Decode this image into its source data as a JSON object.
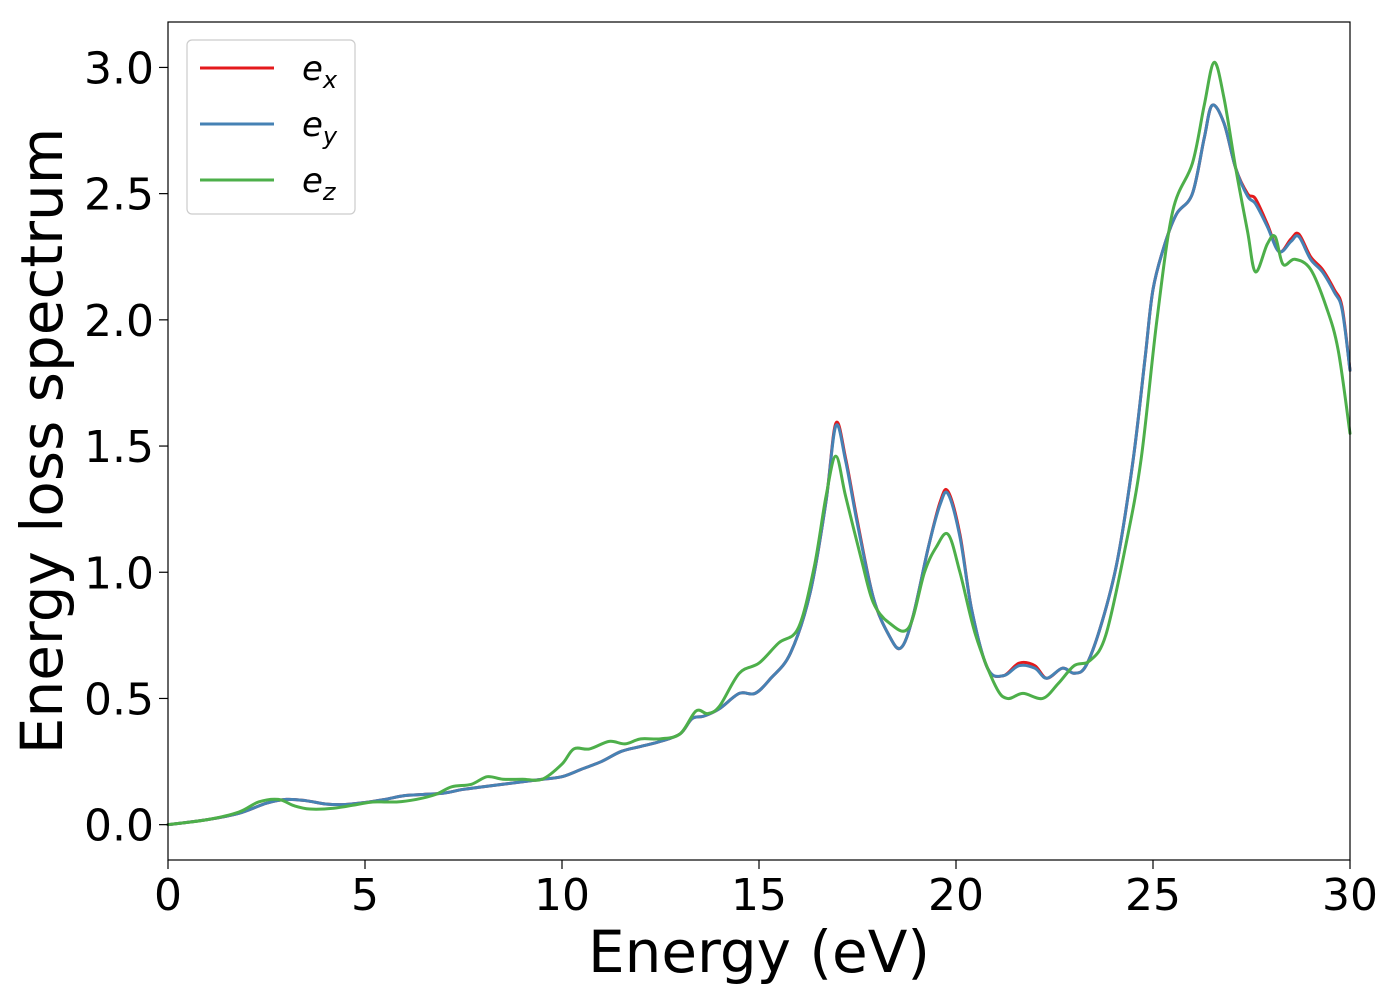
{
  "chart_data": {
    "type": "line",
    "title": "",
    "xlabel": "Energy (eV)",
    "ylabel": "Energy loss spectrum",
    "xlim": [
      0,
      30
    ],
    "ylim": [
      -0.14,
      3.18
    ],
    "xticks": [
      "0",
      "5",
      "10",
      "15",
      "20",
      "25",
      "30"
    ],
    "yticks": [
      "0.0",
      "0.5",
      "1.0",
      "1.5",
      "2.0",
      "2.5",
      "3.0"
    ],
    "grid": false,
    "legend_position": "top-left",
    "series": [
      {
        "name": "e_x",
        "legend_main": "e",
        "legend_sub": "x",
        "color": "#e41a1c",
        "x": [
          0,
          1,
          1.8,
          2.5,
          3,
          3.5,
          4,
          4.5,
          5,
          5.5,
          6,
          6.5,
          7,
          7.5,
          8,
          8.5,
          9,
          9.5,
          10,
          10.5,
          11,
          11.5,
          12,
          12.5,
          13,
          13.3,
          13.6,
          14,
          14.5,
          14.9,
          15.3,
          15.8,
          16.3,
          16.7,
          16.95,
          17.2,
          17.5,
          17.9,
          18.3,
          18.6,
          18.9,
          19.3,
          19.6,
          19.8,
          20.1,
          20.4,
          20.8,
          21.2,
          21.6,
          22,
          22.3,
          22.7,
          23,
          23.3,
          23.7,
          24.1,
          24.5,
          24.8,
          25,
          25.3,
          25.6,
          26,
          26.3,
          26.5,
          26.8,
          27.1,
          27.4,
          27.6,
          27.9,
          28.2,
          28.5,
          28.7,
          29,
          29.3,
          29.6,
          29.8,
          30
        ],
        "values": [
          0,
          0.02,
          0.045,
          0.085,
          0.1,
          0.095,
          0.082,
          0.08,
          0.088,
          0.1,
          0.115,
          0.12,
          0.125,
          0.14,
          0.15,
          0.16,
          0.17,
          0.18,
          0.19,
          0.22,
          0.25,
          0.29,
          0.31,
          0.33,
          0.36,
          0.42,
          0.43,
          0.46,
          0.52,
          0.52,
          0.58,
          0.68,
          0.92,
          1.28,
          1.59,
          1.45,
          1.2,
          0.9,
          0.75,
          0.7,
          0.82,
          1.1,
          1.28,
          1.32,
          1.15,
          0.85,
          0.62,
          0.59,
          0.64,
          0.63,
          0.58,
          0.62,
          0.6,
          0.63,
          0.8,
          1.05,
          1.45,
          1.85,
          2.12,
          2.3,
          2.42,
          2.5,
          2.72,
          2.85,
          2.78,
          2.6,
          2.5,
          2.48,
          2.38,
          2.27,
          2.32,
          2.34,
          2.25,
          2.2,
          2.12,
          2.05,
          1.8
        ]
      },
      {
        "name": "e_y",
        "legend_main": "e",
        "legend_sub": "y",
        "color": "#4682b4",
        "x": [
          0,
          1,
          1.8,
          2.5,
          3,
          3.5,
          4,
          4.5,
          5,
          5.5,
          6,
          6.5,
          7,
          7.5,
          8,
          8.5,
          9,
          9.5,
          10,
          10.5,
          11,
          11.5,
          12,
          12.5,
          13,
          13.3,
          13.6,
          14,
          14.5,
          14.9,
          15.3,
          15.8,
          16.3,
          16.7,
          16.95,
          17.2,
          17.5,
          17.9,
          18.3,
          18.6,
          18.9,
          19.3,
          19.6,
          19.8,
          20.1,
          20.4,
          20.8,
          21.2,
          21.6,
          22,
          22.3,
          22.7,
          23,
          23.3,
          23.7,
          24.1,
          24.5,
          24.8,
          25,
          25.3,
          25.6,
          26,
          26.3,
          26.5,
          26.8,
          27.1,
          27.4,
          27.6,
          27.9,
          28.2,
          28.5,
          28.7,
          29,
          29.3,
          29.6,
          29.8,
          30
        ],
        "values": [
          0,
          0.02,
          0.045,
          0.085,
          0.1,
          0.095,
          0.082,
          0.08,
          0.088,
          0.1,
          0.115,
          0.12,
          0.125,
          0.14,
          0.15,
          0.16,
          0.17,
          0.18,
          0.19,
          0.22,
          0.25,
          0.29,
          0.31,
          0.33,
          0.36,
          0.42,
          0.43,
          0.46,
          0.52,
          0.52,
          0.58,
          0.68,
          0.92,
          1.28,
          1.58,
          1.44,
          1.19,
          0.9,
          0.75,
          0.7,
          0.82,
          1.1,
          1.27,
          1.31,
          1.14,
          0.85,
          0.62,
          0.59,
          0.63,
          0.62,
          0.58,
          0.62,
          0.6,
          0.63,
          0.8,
          1.05,
          1.45,
          1.85,
          2.12,
          2.3,
          2.42,
          2.5,
          2.72,
          2.85,
          2.78,
          2.6,
          2.49,
          2.46,
          2.37,
          2.27,
          2.31,
          2.33,
          2.24,
          2.19,
          2.11,
          2.04,
          1.8
        ]
      },
      {
        "name": "e_z",
        "legend_main": "e",
        "legend_sub": "z",
        "color": "#4daf4a",
        "x": [
          0,
          1,
          1.8,
          2.3,
          2.8,
          3.2,
          3.6,
          4.2,
          4.8,
          5.2,
          5.8,
          6.3,
          6.8,
          7.2,
          7.7,
          8.1,
          8.5,
          9,
          9.5,
          10,
          10.3,
          10.7,
          11.2,
          11.6,
          12,
          12.5,
          13,
          13.4,
          13.7,
          14,
          14.5,
          15,
          15.5,
          16,
          16.4,
          16.7,
          16.95,
          17.2,
          17.6,
          17.9,
          18.3,
          18.8,
          19.2,
          19.5,
          19.8,
          20.1,
          20.5,
          21,
          21.3,
          21.7,
          22.2,
          22.6,
          23,
          23.4,
          23.8,
          24.3,
          24.7,
          25.1,
          25.5,
          26,
          26.3,
          26.55,
          26.8,
          27.1,
          27.4,
          27.6,
          27.9,
          28.1,
          28.3,
          28.6,
          29,
          29.4,
          29.7,
          30
        ],
        "values": [
          0,
          0.02,
          0.05,
          0.09,
          0.1,
          0.075,
          0.062,
          0.065,
          0.08,
          0.09,
          0.09,
          0.1,
          0.12,
          0.15,
          0.16,
          0.19,
          0.18,
          0.18,
          0.18,
          0.24,
          0.3,
          0.3,
          0.33,
          0.32,
          0.34,
          0.34,
          0.36,
          0.45,
          0.44,
          0.47,
          0.6,
          0.64,
          0.72,
          0.78,
          1.02,
          1.3,
          1.46,
          1.3,
          1.05,
          0.88,
          0.8,
          0.78,
          1.0,
          1.1,
          1.15,
          1.0,
          0.75,
          0.55,
          0.5,
          0.52,
          0.5,
          0.56,
          0.63,
          0.65,
          0.75,
          1.1,
          1.45,
          2.0,
          2.43,
          2.62,
          2.85,
          3.02,
          2.88,
          2.6,
          2.35,
          2.19,
          2.3,
          2.33,
          2.22,
          2.24,
          2.2,
          2.05,
          1.88,
          1.55
        ]
      }
    ]
  }
}
